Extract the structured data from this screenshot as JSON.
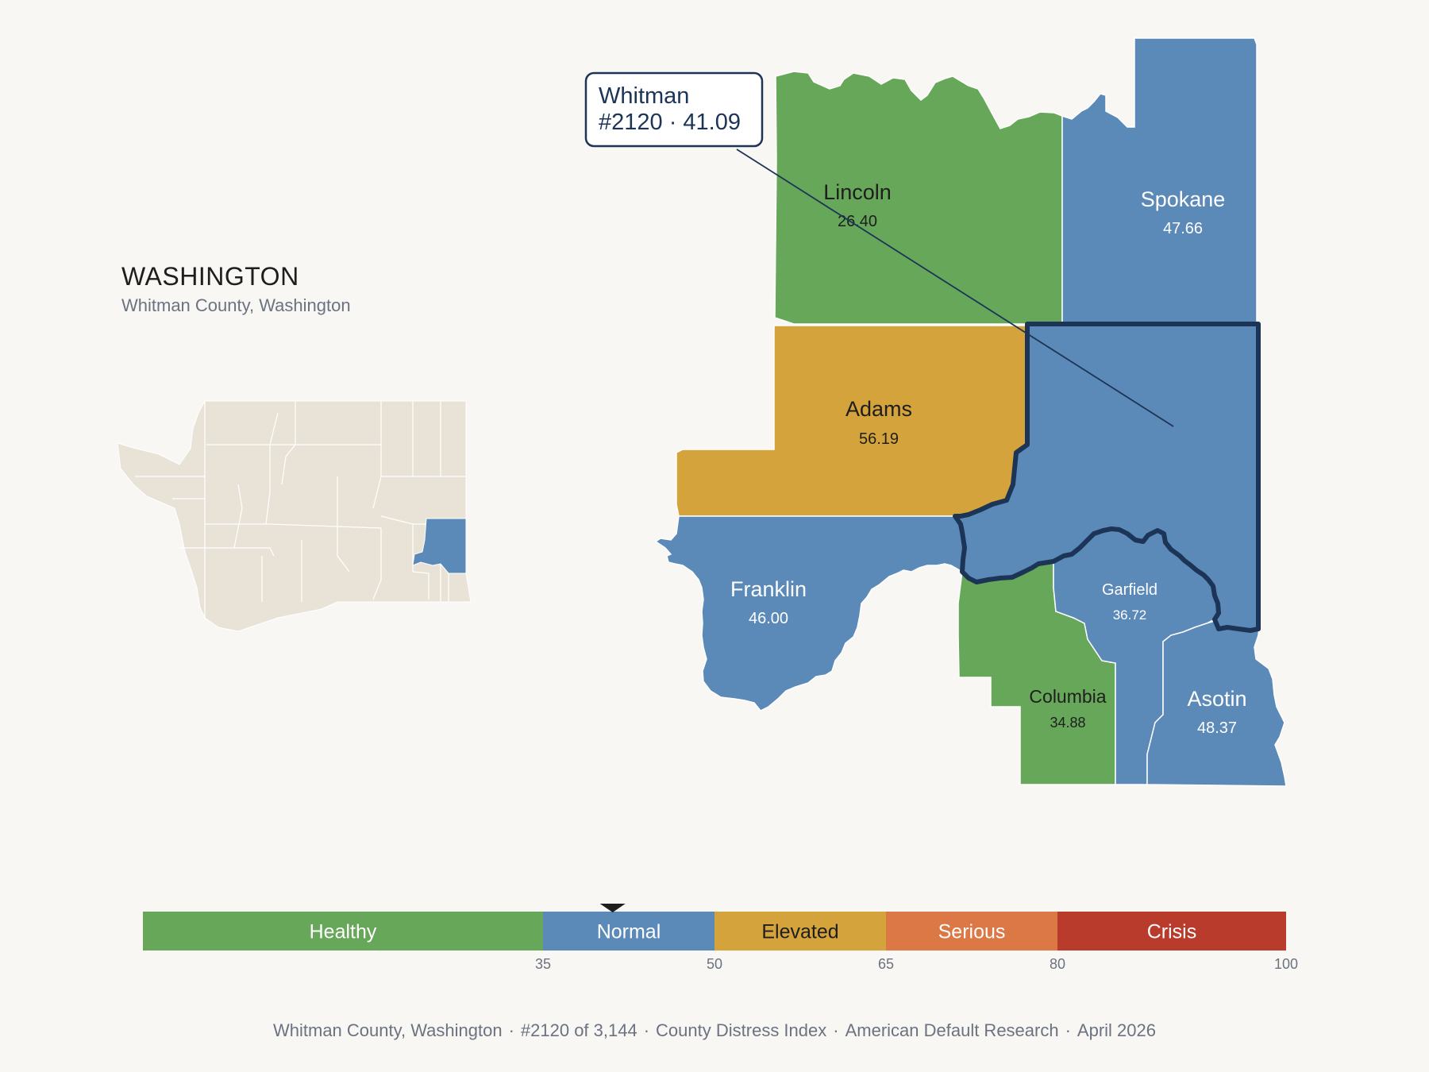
{
  "header": {
    "state_title": "WASHINGTON",
    "subtitle": "Whitman County, Washington"
  },
  "callout": {
    "line1": "Whitman",
    "line2": "#2120 · 41.09"
  },
  "counties": {
    "lincoln": {
      "name": "Lincoln",
      "value": "26.40",
      "category": "Healthy"
    },
    "spokane": {
      "name": "Spokane",
      "value": "47.66",
      "category": "Normal"
    },
    "adams": {
      "name": "Adams",
      "value": "56.19",
      "category": "Elevated"
    },
    "franklin": {
      "name": "Franklin",
      "value": "46.00",
      "category": "Normal"
    },
    "garfield": {
      "name": "Garfield",
      "value": "36.72",
      "category": "Normal"
    },
    "columbia": {
      "name": "Columbia",
      "value": "34.88",
      "category": "Healthy"
    },
    "asotin": {
      "name": "Asotin",
      "value": "48.37",
      "category": "Normal"
    },
    "whitman": {
      "name": "Whitman",
      "value": "41.09",
      "category": "Normal",
      "highlighted": true
    }
  },
  "legend": {
    "segments": [
      {
        "label": "Healthy",
        "from": 0,
        "to": 35,
        "color": "#67a759"
      },
      {
        "label": "Normal",
        "from": 35,
        "to": 50,
        "color": "#5b89b8"
      },
      {
        "label": "Elevated",
        "from": 50,
        "to": 65,
        "color": "#d4a33b"
      },
      {
        "label": "Serious",
        "from": 65,
        "to": 80,
        "color": "#dc7845"
      },
      {
        "label": "Crisis",
        "from": 80,
        "to": 100,
        "color": "#b83b2b"
      }
    ],
    "ticks": [
      "35",
      "50",
      "65",
      "80",
      "100"
    ],
    "marker_value": 41.09
  },
  "colors": {
    "healthy": "#67a759",
    "normal": "#5b89b8",
    "elevated": "#d4a33b",
    "serious": "#dc7845",
    "crisis": "#b83b2b",
    "highlight_border": "#1c3557",
    "locator_fill": "#e9e3d7",
    "background": "#f9f7f4"
  },
  "footer": {
    "county": "Whitman County, Washington",
    "rank": "#2120 of 3,144",
    "index": "County Distress Index",
    "source": "American Default Research",
    "date": "April 2026",
    "separator": "·"
  }
}
